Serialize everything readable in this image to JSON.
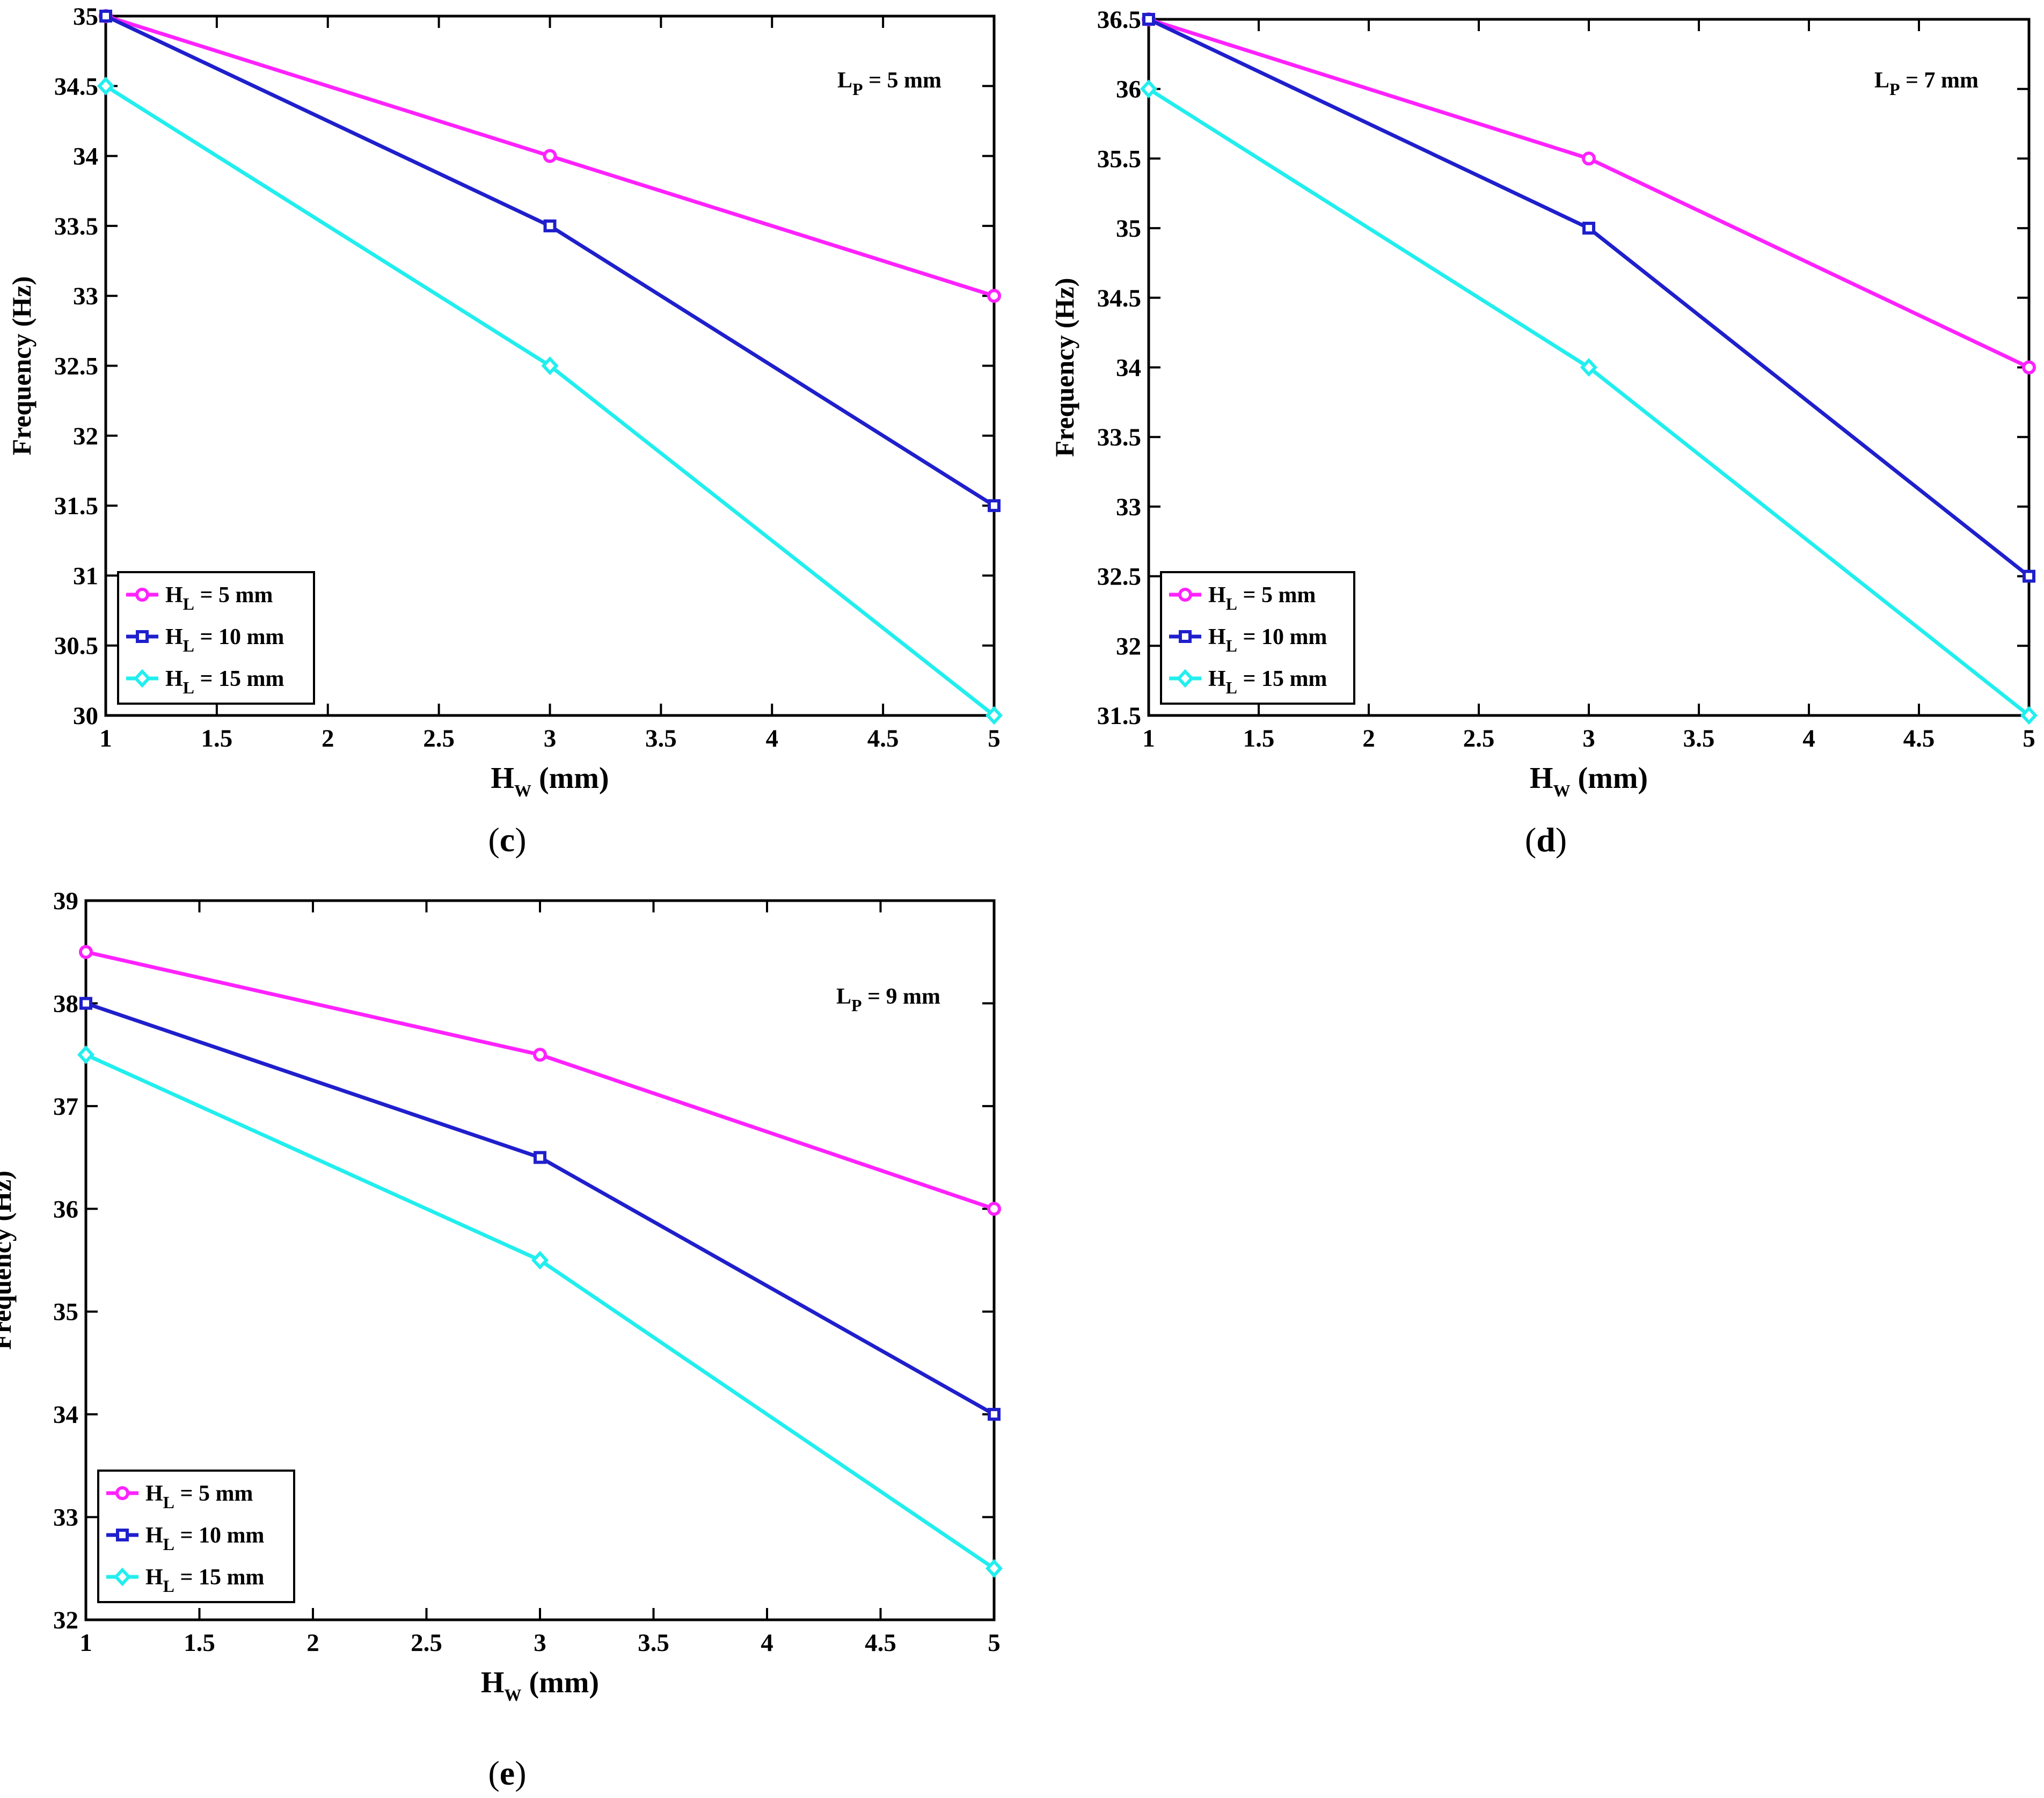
{
  "colors": {
    "series_HL5": "#ff22ff",
    "series_HL10": "#1f1fcc",
    "series_HL15": "#22eeee",
    "axis": "#000000"
  },
  "chart_data": [
    {
      "panel": "c",
      "caption_open": "(",
      "caption_letter": "c",
      "caption_close": ")",
      "type": "line",
      "annotation": {
        "base": "L",
        "sub": "P",
        "rest": " = 5 mm"
      },
      "ylabel": "Frequency (Hz)",
      "xlabel": {
        "base": "H",
        "sub": "W",
        "rest": " (mm)"
      },
      "xlim": [
        1,
        5
      ],
      "ylim": [
        30,
        35
      ],
      "xticks": [
        1,
        1.5,
        2,
        2.5,
        3,
        3.5,
        4,
        4.5,
        5
      ],
      "xtick_labels": [
        "1",
        "1.5",
        "2",
        "2.5",
        "3",
        "3.5",
        "4",
        "4.5",
        "5"
      ],
      "yticks": [
        30,
        30.5,
        31,
        31.5,
        32,
        32.5,
        33,
        33.5,
        34,
        34.5,
        35
      ],
      "ytick_labels": [
        "30",
        "30.5",
        "31",
        "31.5",
        "32",
        "32.5",
        "33",
        "33.5",
        "34",
        "34.5",
        "35"
      ],
      "x": [
        1,
        3,
        5
      ],
      "series": [
        {
          "name": "H_L = 5 mm",
          "legend": {
            "base": "H",
            "sub": "L",
            "rest": " = 5 mm"
          },
          "color_key": "series_HL5",
          "marker": "circle",
          "values": [
            35,
            34,
            33
          ]
        },
        {
          "name": "H_L = 10 mm",
          "legend": {
            "base": "H",
            "sub": "L",
            "rest": " = 10 mm"
          },
          "color_key": "series_HL10",
          "marker": "square",
          "values": [
            35,
            33.5,
            31.5
          ]
        },
        {
          "name": "H_L = 15 mm",
          "legend": {
            "base": "H",
            "sub": "L",
            "rest": " = 15 mm"
          },
          "color_key": "series_HL15",
          "marker": "diamond",
          "values": [
            34.5,
            32.5,
            30
          ]
        }
      ],
      "legend_position": "bottom-left",
      "grid": false
    },
    {
      "panel": "d",
      "caption_open": "(",
      "caption_letter": "d",
      "caption_close": ")",
      "type": "line",
      "annotation": {
        "base": "L",
        "sub": "P",
        "rest": " = 7 mm"
      },
      "ylabel": "Frequency (Hz)",
      "xlabel": {
        "base": "H",
        "sub": "W",
        "rest": " (mm)"
      },
      "xlim": [
        1,
        5
      ],
      "ylim": [
        31.5,
        36.5
      ],
      "xticks": [
        1,
        1.5,
        2,
        2.5,
        3,
        3.5,
        4,
        4.5,
        5
      ],
      "xtick_labels": [
        "1",
        "1.5",
        "2",
        "2.5",
        "3",
        "3.5",
        "4",
        "4.5",
        "5"
      ],
      "yticks": [
        31.5,
        32,
        32.5,
        33,
        33.5,
        34,
        34.5,
        35,
        35.5,
        36,
        36.5
      ],
      "ytick_labels": [
        "31.5",
        "32",
        "32.5",
        "33",
        "33.5",
        "34",
        "34.5",
        "35",
        "35.5",
        "36",
        "36.5"
      ],
      "x": [
        1,
        3,
        5
      ],
      "series": [
        {
          "name": "H_L = 5 mm",
          "legend": {
            "base": "H",
            "sub": "L",
            "rest": " = 5 mm"
          },
          "color_key": "series_HL5",
          "marker": "circle",
          "values": [
            36.5,
            35.5,
            34
          ]
        },
        {
          "name": "H_L = 10 mm",
          "legend": {
            "base": "H",
            "sub": "L",
            "rest": " = 10 mm"
          },
          "color_key": "series_HL10",
          "marker": "square",
          "values": [
            36.5,
            35,
            32.5
          ]
        },
        {
          "name": "H_L = 15 mm",
          "legend": {
            "base": "H",
            "sub": "L",
            "rest": " = 15 mm"
          },
          "color_key": "series_HL15",
          "marker": "diamond",
          "values": [
            36,
            34,
            31.5
          ]
        }
      ],
      "legend_position": "bottom-left",
      "grid": false
    },
    {
      "panel": "e",
      "caption_open": "(",
      "caption_letter": "e",
      "caption_close": ")",
      "type": "line",
      "annotation": {
        "base": "L",
        "sub": "P",
        "rest": " = 9 mm"
      },
      "ylabel": "Frequency (Hz)",
      "xlabel": {
        "base": "H",
        "sub": "W",
        "rest": " (mm)"
      },
      "xlim": [
        1,
        5
      ],
      "ylim": [
        32,
        39
      ],
      "xticks": [
        1,
        1.5,
        2,
        2.5,
        3,
        3.5,
        4,
        4.5,
        5
      ],
      "xtick_labels": [
        "1",
        "1.5",
        "2",
        "2.5",
        "3",
        "3.5",
        "4",
        "4.5",
        "5"
      ],
      "yticks": [
        32,
        33,
        34,
        35,
        36,
        37,
        38,
        39
      ],
      "ytick_labels": [
        "32",
        "33",
        "34",
        "35",
        "36",
        "37",
        "38",
        "39"
      ],
      "x": [
        1,
        3,
        5
      ],
      "series": [
        {
          "name": "H_L = 5 mm",
          "legend": {
            "base": "H",
            "sub": "L",
            "rest": " = 5 mm"
          },
          "color_key": "series_HL5",
          "marker": "circle",
          "values": [
            38.5,
            37.5,
            36
          ]
        },
        {
          "name": "H_L = 10 mm",
          "legend": {
            "base": "H",
            "sub": "L",
            "rest": " = 10 mm"
          },
          "color_key": "series_HL10",
          "marker": "square",
          "values": [
            38,
            36.5,
            34
          ]
        },
        {
          "name": "H_L = 15 mm",
          "legend": {
            "base": "H",
            "sub": "L",
            "rest": " = 15 mm"
          },
          "color_key": "series_HL15",
          "marker": "diamond",
          "values": [
            37.5,
            35.5,
            32.5
          ]
        }
      ],
      "legend_position": "bottom-left",
      "grid": false
    }
  ]
}
